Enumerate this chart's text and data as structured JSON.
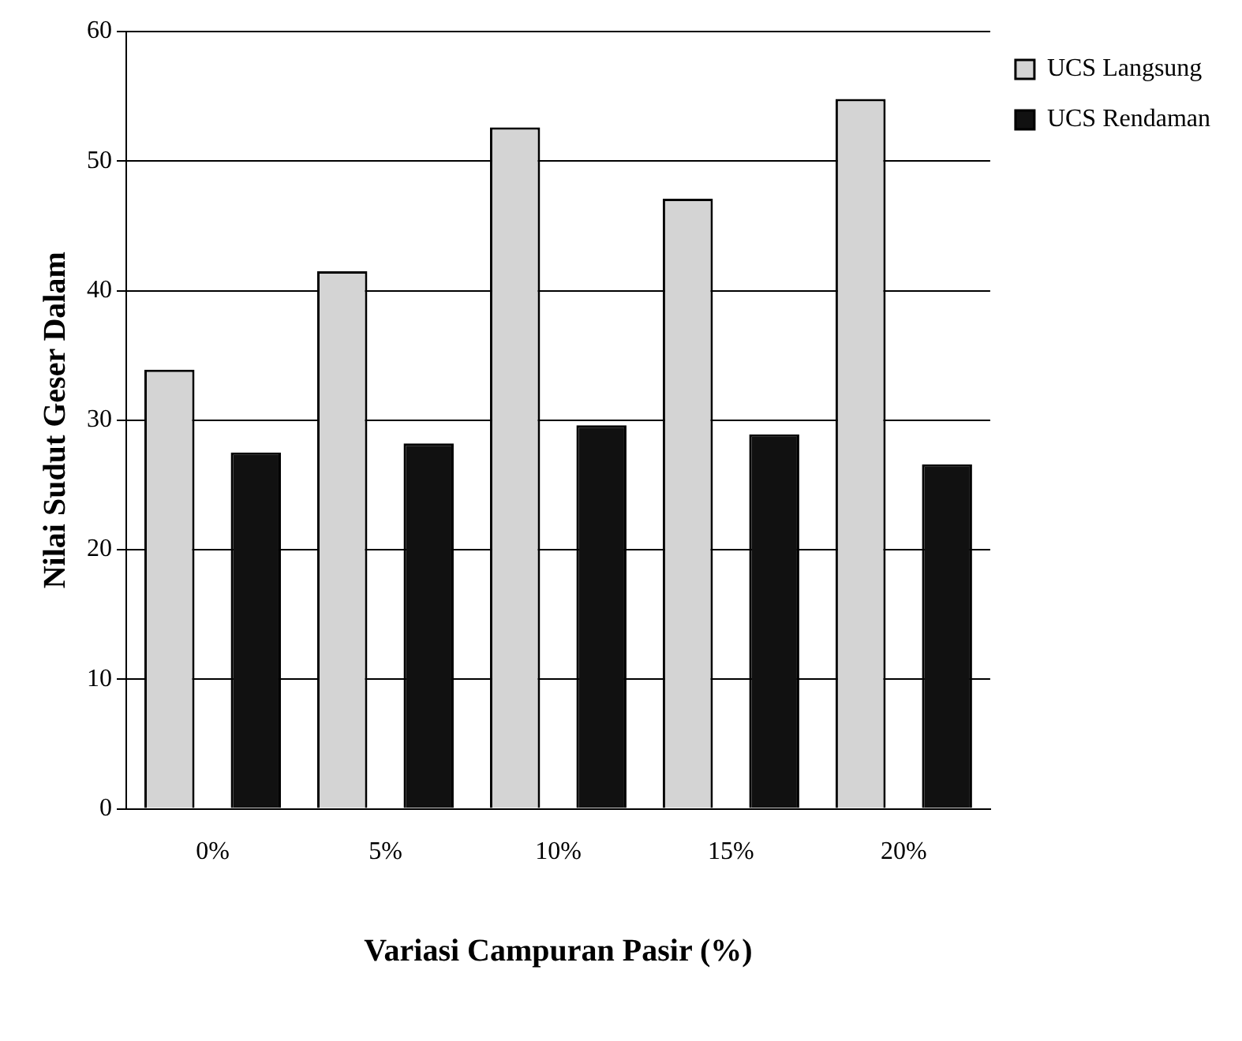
{
  "chart_data": {
    "type": "bar",
    "xlabel": "Variasi Campuran Pasir (%)",
    "ylabel": "Nilai Sudut Geser Dalam",
    "categories": [
      "0%",
      "5%",
      "10%",
      "15%",
      "20%"
    ],
    "series": [
      {
        "name": "UCS Langsung",
        "color": "#d4d4d4",
        "values": [
          33.9,
          41.5,
          52.6,
          47.1,
          54.8
        ]
      },
      {
        "name": "UCS Rendaman",
        "color": "#111111",
        "values": [
          27.5,
          28.2,
          29.6,
          28.9,
          26.6
        ]
      }
    ],
    "ylim": [
      0,
      60
    ],
    "yticks": [
      0,
      10,
      20,
      30,
      40,
      50,
      60
    ],
    "grid": "y",
    "legend": "top right"
  }
}
